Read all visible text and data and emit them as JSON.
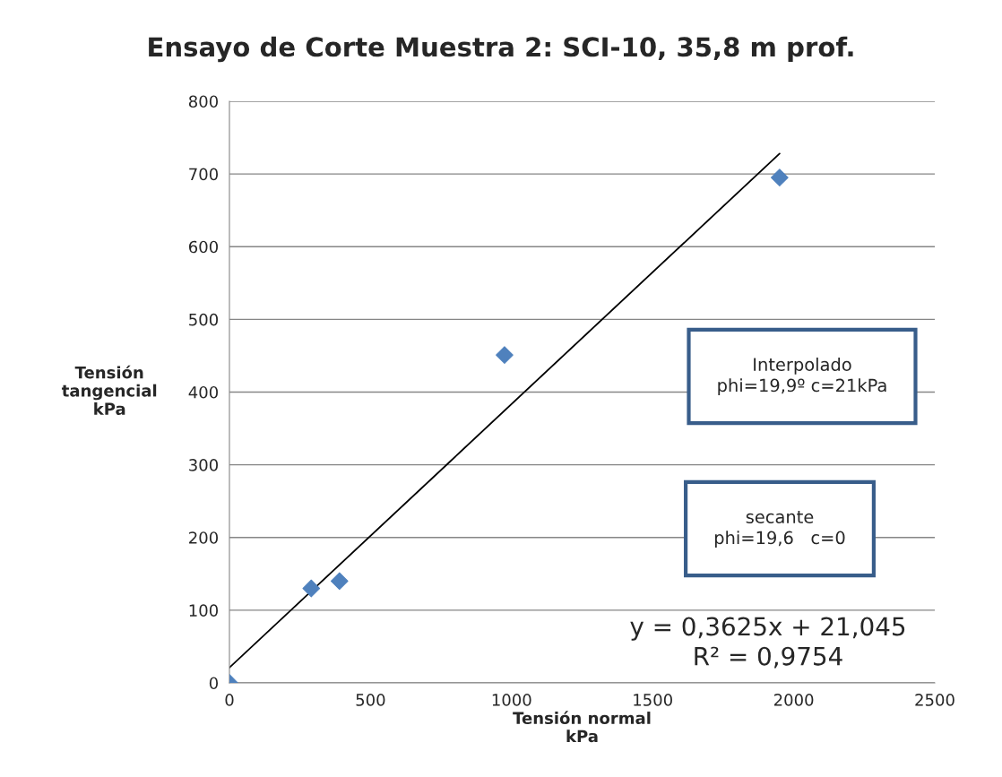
{
  "chart_data": {
    "type": "scatter",
    "title": "Ensayo de Corte Muestra 2: SCI-10, 35,8 m prof.",
    "xlabel": "Tensión normal\nkPa",
    "ylabel": "Tensión\ntangencial\nkPa",
    "series": [
      {
        "color": "#4f81bd",
        "marker": "diamond",
        "x": [
          0,
          290,
          390,
          975,
          1950
        ],
        "values": [
          0,
          130,
          140,
          451,
          695
        ]
      },
      {
        "type": "line",
        "color": "#000000",
        "marker": "none",
        "line_style": "solid",
        "x": [
          0,
          1950
        ],
        "values": [
          21,
          728
        ]
      }
    ],
    "xlim": [
      0,
      2500
    ],
    "xticks": [
      0,
      500,
      1000,
      1500,
      2000,
      2500
    ],
    "ylim": [
      0,
      800
    ],
    "yticks": [
      0,
      100,
      200,
      300,
      400,
      500,
      600,
      700,
      800
    ],
    "grid": "y",
    "legend": false,
    "annotations": [
      "Interpolado\nphi=19,9º c=21kPa",
      "secante\nphi=19,6   c=0",
      "y = 0,3625x + 21,045\nR² = 0,9754"
    ]
  }
}
